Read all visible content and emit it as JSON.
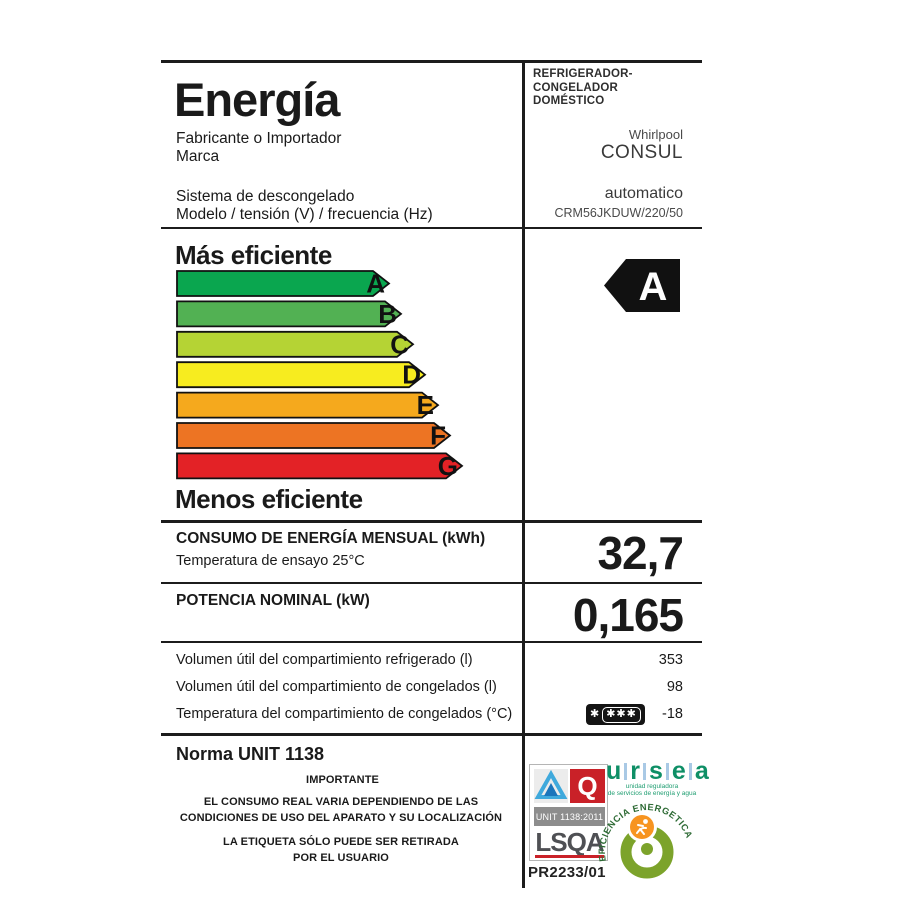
{
  "label": {
    "title": "Energía",
    "manufacturer_label": "Fabricante o Importador",
    "brand_label": "Marca",
    "defrost_label": "Sistema de descongelado",
    "model_label": "Modelo / tensión (V) / frecuencia (Hz)",
    "category_line1": "REFRIGERADOR-",
    "category_line2": "CONGELADOR",
    "category_line3": "DOMÉSTICO",
    "manufacturer": "Whirlpool",
    "brand": "CONSUL",
    "defrost": "automatico",
    "model": "CRM56JKDUW/220/50"
  },
  "scale": {
    "more_efficient": "Más eficiente",
    "less_efficient": "Menos eficiente",
    "rating": "A",
    "rating_arrow_color": "#111111",
    "arrows": [
      {
        "letter": "A",
        "color": "#0aa64f",
        "body_width": 197
      },
      {
        "letter": "B",
        "color": "#52b153",
        "body_width": 209
      },
      {
        "letter": "C",
        "color": "#b5d334",
        "body_width": 221
      },
      {
        "letter": "D",
        "color": "#f7ec1f",
        "body_width": 233
      },
      {
        "letter": "E",
        "color": "#f5a91d",
        "body_width": 246
      },
      {
        "letter": "F",
        "color": "#ed7423",
        "body_width": 258
      },
      {
        "letter": "G",
        "color": "#e32226",
        "body_width": 270
      }
    ]
  },
  "consumption": {
    "label": "CONSUMO DE ENERGÍA MENSUAL (kWh)",
    "sublabel": "Temperatura de ensayo 25°C",
    "value": "32,7"
  },
  "power": {
    "label": "POTENCIA NOMINAL (kW)",
    "value": "0,165"
  },
  "details": {
    "rows": [
      {
        "label": "Volumen útil del compartimiento refrigerado (l)",
        "value": "353"
      },
      {
        "label": "Volumen útil del compartimiento de congelados (l)",
        "value": "98"
      },
      {
        "label": "Temperatura del compartimiento de congelados (°C)",
        "value": "-18"
      }
    ],
    "star": "✱",
    "star_box": "✱✱✱"
  },
  "footer": {
    "norma": "Norma UNIT 1138",
    "importante": "IMPORTANTE",
    "notice1_line1": "EL CONSUMO REAL VARIA DEPENDIENDO DE LAS",
    "notice1_line2": "CONDICIONES DE USO DEL APARATO Y SU LOCALIZACIÓN",
    "notice2_line1": "LA ETIQUETA SÓLO PUEDE SER RETIRADA",
    "notice2_line2": "POR EL USUARIO",
    "code": "PR2233/01"
  },
  "logos": {
    "lsqa": {
      "q": "Q",
      "band": "UNIT 1138:2011",
      "name": "LSQA",
      "red": "#c92128",
      "blue_light": "#3fa9dc",
      "blue_dark": "#1b75bb"
    },
    "ursea": {
      "letters": [
        "u",
        "r",
        "s",
        "e",
        "a"
      ],
      "tagline1": "unidad reguladora",
      "tagline2": "de servicios de energía y agua",
      "green": "#0e8f66",
      "bar_blue": "#a9c9e5"
    },
    "efficiency_badge": {
      "text": "EFICIENCIA ENERGETICA",
      "ring_green": "#7ca32b",
      "orange": "#f79420",
      "text_green": "#2d6a34"
    }
  }
}
